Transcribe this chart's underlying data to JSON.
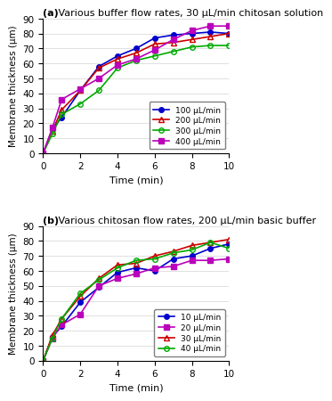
{
  "panel_a": {
    "title_bold": "(a)",
    "title_rest": " Various buffer flow rates, 30 μL/min chitosan solution",
    "xlabel": "Time (min)",
    "ylabel": "Membrane thickness (μm)",
    "xlim": [
      0,
      10
    ],
    "ylim": [
      0,
      90
    ],
    "yticks": [
      0,
      10,
      20,
      30,
      40,
      50,
      60,
      70,
      80,
      90
    ],
    "xticks": [
      0,
      2,
      4,
      6,
      8,
      10
    ],
    "series": [
      {
        "label": "100 μL/min",
        "color": "#0000cc",
        "marker": "o",
        "markerfacecolor": "#0000cc",
        "x": [
          0,
          0.5,
          1,
          2,
          3,
          4,
          5,
          6,
          7,
          8,
          9,
          10
        ],
        "y": [
          0,
          16,
          24,
          42,
          58,
          65,
          70,
          77,
          79,
          80,
          81,
          80
        ]
      },
      {
        "label": "200 μL/min",
        "color": "#cc0000",
        "marker": "^",
        "markerfacecolor": "none",
        "x": [
          0,
          0.5,
          1,
          2,
          3,
          4,
          5,
          6,
          7,
          8,
          9,
          10
        ],
        "y": [
          0,
          15,
          29,
          42,
          57,
          63,
          67,
          73,
          74,
          76,
          78,
          80
        ]
      },
      {
        "label": "300 μL/min",
        "color": "#00aa00",
        "marker": "o",
        "markerfacecolor": "none",
        "x": [
          0,
          0.5,
          1,
          2,
          3,
          4,
          5,
          6,
          7,
          8,
          9,
          10
        ],
        "y": [
          0,
          13,
          26,
          33,
          42,
          57,
          62,
          65,
          68,
          71,
          72,
          72
        ]
      },
      {
        "label": "400 μL/min",
        "color": "#bb00bb",
        "marker": "s",
        "markerfacecolor": "#bb00bb",
        "x": [
          0,
          0.5,
          1,
          2,
          3,
          4,
          5,
          6,
          7,
          8,
          9,
          10
        ],
        "y": [
          0,
          17,
          36,
          43,
          50,
          59,
          63,
          69,
          76,
          82,
          85,
          85
        ]
      }
    ]
  },
  "panel_b": {
    "title_bold": "(b)",
    "title_rest": " Various chitosan flow rates, 200 μL/min basic buffer",
    "xlabel": "Time (min)",
    "ylabel": "Membrane thickness (μm)",
    "xlim": [
      0,
      10
    ],
    "ylim": [
      0,
      90
    ],
    "yticks": [
      0,
      10,
      20,
      30,
      40,
      50,
      60,
      70,
      80,
      90
    ],
    "xticks": [
      0,
      2,
      4,
      6,
      8,
      10
    ],
    "series": [
      {
        "label": "10 μL/min",
        "color": "#0000cc",
        "marker": "o",
        "markerfacecolor": "#0000cc",
        "x": [
          0,
          0.5,
          1,
          2,
          3,
          4,
          5,
          6,
          7,
          8,
          9,
          10
        ],
        "y": [
          0,
          16,
          23,
          39,
          49,
          59,
          62,
          60,
          68,
          70,
          75,
          78
        ]
      },
      {
        "label": "20 μL/min",
        "color": "#bb00bb",
        "marker": "s",
        "markerfacecolor": "#bb00bb",
        "x": [
          0,
          0.5,
          1,
          2,
          3,
          4,
          5,
          6,
          7,
          8,
          9,
          10
        ],
        "y": [
          0,
          15,
          24,
          31,
          50,
          55,
          58,
          62,
          63,
          67,
          67,
          68
        ]
      },
      {
        "label": "30 μL/min",
        "color": "#cc0000",
        "marker": "^",
        "markerfacecolor": "none",
        "x": [
          0,
          0.5,
          1,
          2,
          3,
          4,
          5,
          6,
          7,
          8,
          9,
          10
        ],
        "y": [
          0,
          17,
          28,
          43,
          55,
          64,
          65,
          70,
          73,
          77,
          79,
          81
        ]
      },
      {
        "label": "40 μL/min",
        "color": "#00aa00",
        "marker": "o",
        "markerfacecolor": "none",
        "x": [
          0,
          0.5,
          1,
          2,
          3,
          4,
          5,
          6,
          7,
          8,
          9,
          10
        ],
        "y": [
          0,
          15,
          28,
          45,
          54,
          62,
          67,
          68,
          72,
          74,
          79,
          75
        ]
      }
    ]
  }
}
